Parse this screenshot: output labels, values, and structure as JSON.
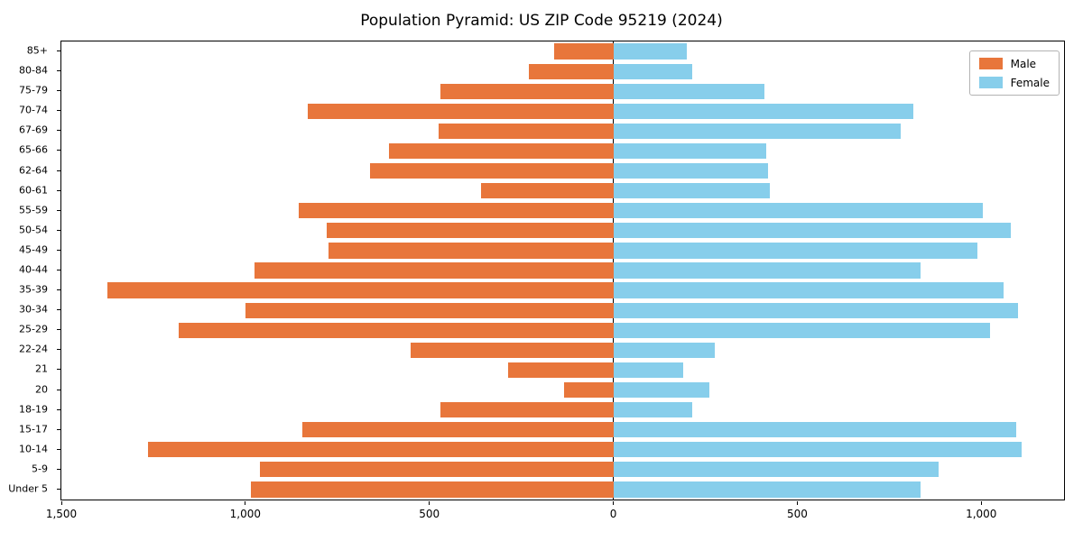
{
  "figure": {
    "background": "#ffffff"
  },
  "chart_data": {
    "type": "bar",
    "subtype": "population-pyramid",
    "title": "Population Pyramid: US ZIP Code 95219 (2024)",
    "xlabel": "",
    "ylabel": "",
    "xlim": [
      -1500,
      1225
    ],
    "x_ticks": [
      -1500,
      -1000,
      -500,
      0,
      500,
      1000
    ],
    "x_tick_labels": [
      "1,500",
      "1,000",
      "500",
      "0",
      "500",
      "1,000"
    ],
    "grid": false,
    "legend_position": "upper right",
    "axis_color": "#000000",
    "zero_line_color": "#000000",
    "categories_top_to_bottom": [
      "85+",
      "80-84",
      "75-79",
      "70-74",
      "67-69",
      "65-66",
      "62-64",
      "60-61",
      "55-59",
      "50-54",
      "45-49",
      "40-44",
      "35-39",
      "30-34",
      "25-29",
      "22-24",
      "21",
      "20",
      "18-19",
      "15-17",
      "10-14",
      "5-9",
      "Under 5"
    ],
    "series": [
      {
        "name": "Male",
        "side": "left",
        "color": "#e8763b",
        "values": [
          160,
          230,
          470,
          830,
          475,
          610,
          660,
          360,
          855,
          780,
          775,
          975,
          1375,
          1000,
          1180,
          550,
          285,
          135,
          470,
          845,
          1265,
          960,
          985
        ]
      },
      {
        "name": "Female",
        "side": "right",
        "color": "#87ceeb",
        "values": [
          200,
          215,
          410,
          815,
          780,
          415,
          420,
          425,
          1005,
          1080,
          990,
          835,
          1060,
          1100,
          1025,
          275,
          190,
          260,
          215,
          1095,
          1110,
          885,
          835
        ]
      }
    ]
  }
}
